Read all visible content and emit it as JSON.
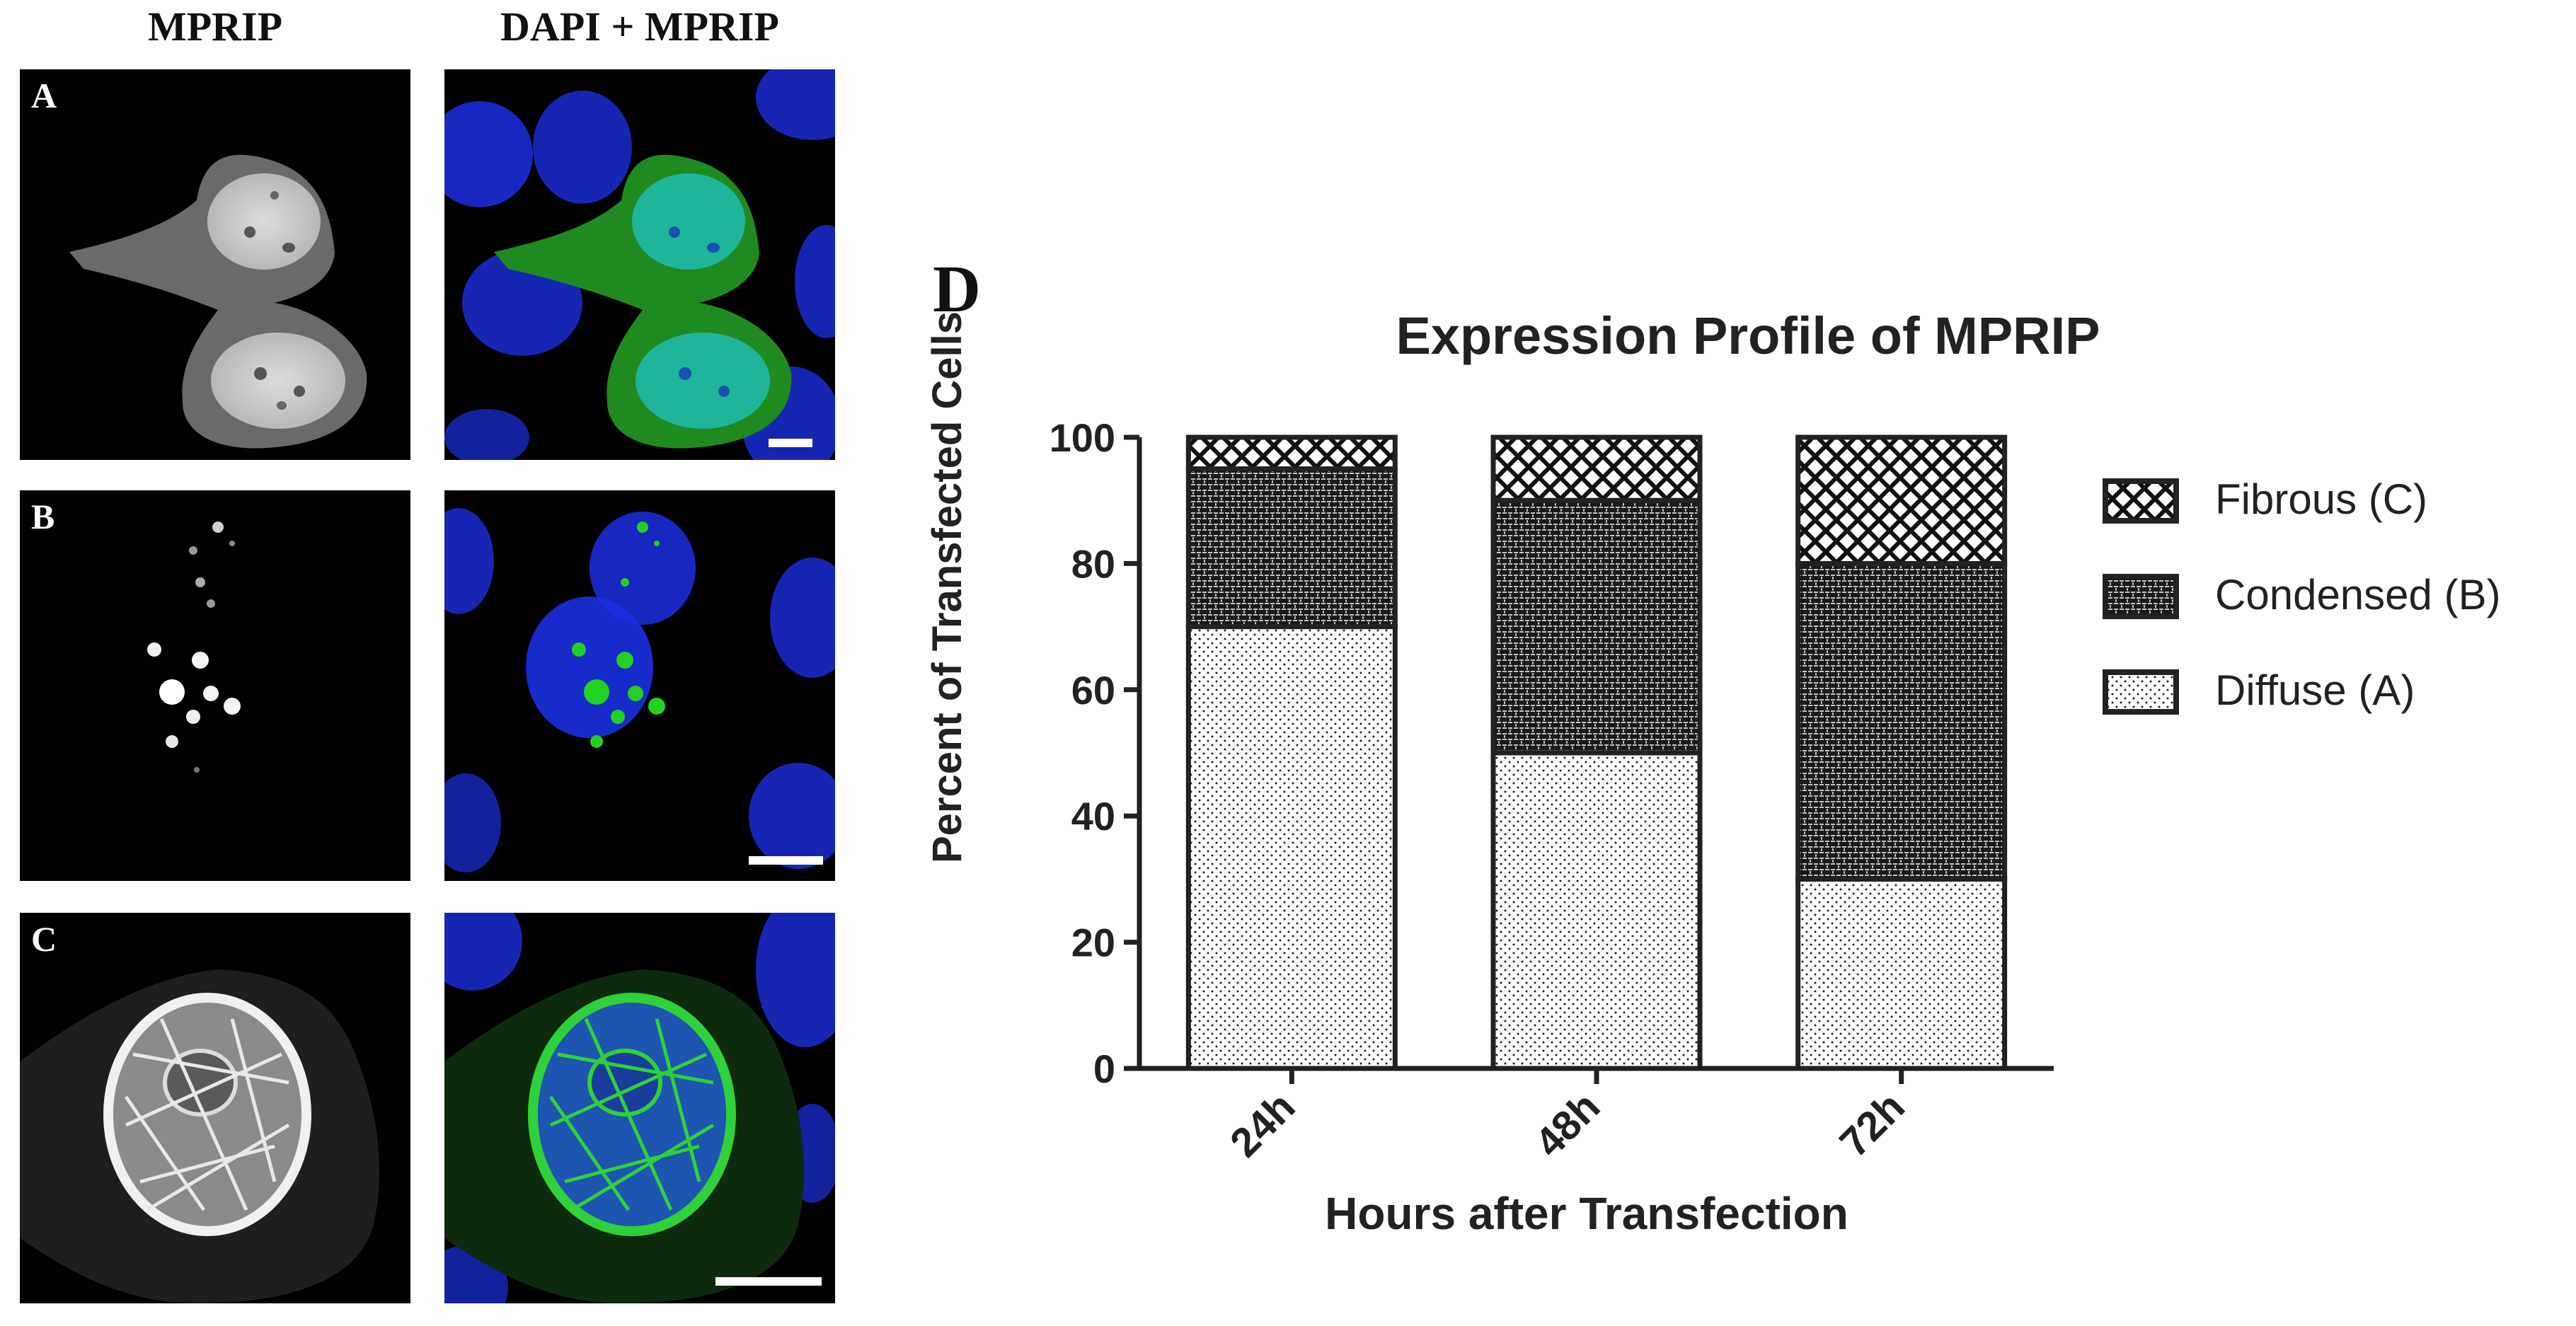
{
  "micro": {
    "headers": [
      "MPRIP",
      "DAPI + MPRIP"
    ],
    "rows": [
      {
        "label": "A",
        "pattern": "diffuse"
      },
      {
        "label": "B",
        "pattern": "condensed"
      },
      {
        "label": "C",
        "pattern": "fibrous"
      }
    ],
    "colors": {
      "dapi": "#1a2fe0",
      "mprip": "#22d022"
    }
  },
  "chart_data": {
    "type": "bar",
    "stacked": true,
    "panel_label": "D",
    "title": "Expression Profile of MPRIP",
    "xlabel": "Hours after Transfection",
    "ylabel": "Percent of Transfected Cells",
    "categories": [
      "24h",
      "48h",
      "72h"
    ],
    "ylim": [
      0,
      100
    ],
    "yticks": [
      0,
      20,
      40,
      60,
      80,
      100
    ],
    "series": [
      {
        "name": "Diffuse (A)",
        "values": [
          70,
          50,
          30
        ],
        "pattern": "dots"
      },
      {
        "name": "Condensed (B)",
        "values": [
          25,
          40,
          50
        ],
        "pattern": "brick"
      },
      {
        "name": "Fibrous (C)",
        "values": [
          5,
          10,
          20
        ],
        "pattern": "crosshatch"
      }
    ],
    "legend_order": [
      "Fibrous (C)",
      "Condensed (B)",
      "Diffuse (A)"
    ],
    "legend_position": "right",
    "grid": false
  }
}
